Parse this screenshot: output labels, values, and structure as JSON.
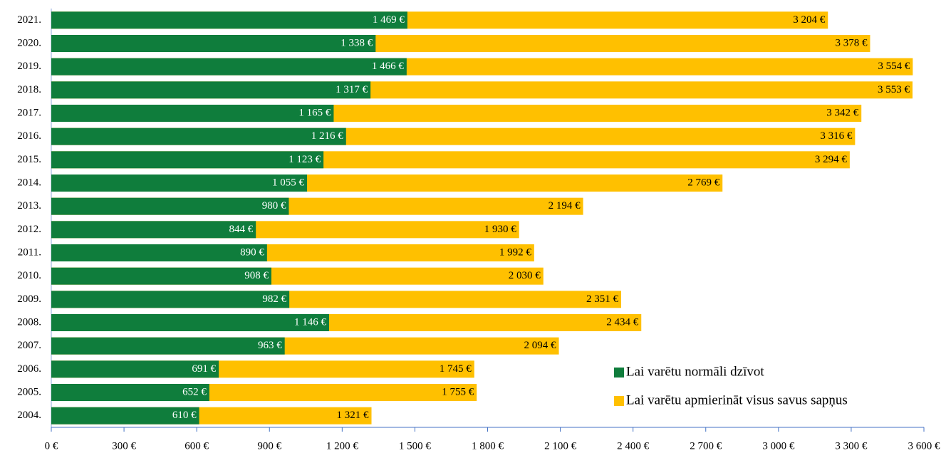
{
  "chart_data": {
    "type": "bar",
    "orientation": "horizontal",
    "overlap": true,
    "categories": [
      "2021.",
      "2020.",
      "2019.",
      "2018.",
      "2017.",
      "2016.",
      "2015.",
      "2014.",
      "2013.",
      "2012.",
      "2011.",
      "2010.",
      "2009.",
      "2008.",
      "2007.",
      "2006.",
      "2005.",
      "2004."
    ],
    "series": [
      {
        "name": "Lai varētu normāli dzīvot",
        "color": "#0f7d3c",
        "values": [
          1469,
          1338,
          1466,
          1317,
          1165,
          1216,
          1123,
          1055,
          980,
          844,
          890,
          908,
          982,
          1146,
          963,
          691,
          652,
          610
        ],
        "value_labels": [
          "1 469 €",
          "1 338 €",
          "1 466 €",
          "1 317 €",
          "1 165 €",
          "1 216 €",
          "1 123 €",
          "1 055 €",
          "980 €",
          "844 €",
          "890 €",
          "908 €",
          "982 €",
          "1 146 €",
          "963 €",
          "691 €",
          "652 €",
          "610 €"
        ]
      },
      {
        "name": "Lai varētu apmierināt visus savus sapņus",
        "color": "#ffc000",
        "values": [
          3204,
          3378,
          3554,
          3553,
          3342,
          3316,
          3294,
          2769,
          2194,
          1930,
          1992,
          2030,
          2351,
          2434,
          2094,
          1745,
          1755,
          1321
        ],
        "value_labels": [
          "3 204 €",
          "3 378 €",
          "3 554 €",
          "3 553 €",
          "3 342 €",
          "3 316 €",
          "3 294 €",
          "2 769 €",
          "2 194 €",
          "1 930 €",
          "1 992 €",
          "2 030 €",
          "2 351 €",
          "2 434 €",
          "2 094 €",
          "1 745 €",
          "1 755 €",
          "1 321 €"
        ]
      }
    ],
    "xlim": [
      0,
      3600
    ],
    "xticks": [
      {
        "value": 0,
        "label": "0 €"
      },
      {
        "value": 300,
        "label": "300 €"
      },
      {
        "value": 600,
        "label": "600 €"
      },
      {
        "value": 900,
        "label": "900 €"
      },
      {
        "value": 1200,
        "label": "1 200 €"
      },
      {
        "value": 1500,
        "label": "1 500 €"
      },
      {
        "value": 1800,
        "label": "1 800 €"
      },
      {
        "value": 2100,
        "label": "2 100 €"
      },
      {
        "value": 2400,
        "label": "2 400 €"
      },
      {
        "value": 2700,
        "label": "2 700 €"
      },
      {
        "value": 3000,
        "label": "3 000 €"
      },
      {
        "value": 3300,
        "label": "3 300 €"
      },
      {
        "value": 3600,
        "label": "3 600 €"
      }
    ],
    "legend": "lower right"
  }
}
